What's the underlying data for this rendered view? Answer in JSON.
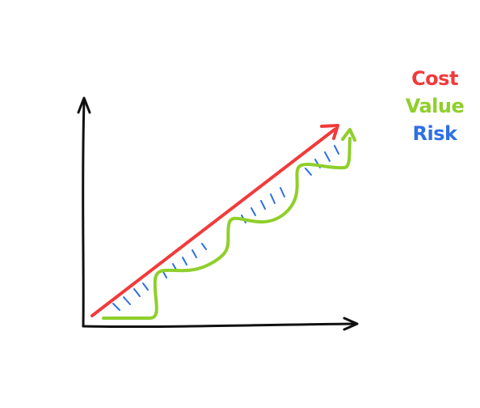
{
  "legend": {
    "items": [
      {
        "label": "Cost",
        "color": "#f23a3a"
      },
      {
        "label": "Value",
        "color": "#8fcf2a"
      },
      {
        "label": "Risk",
        "color": "#2f6fe6"
      }
    ]
  },
  "colors": {
    "axis": "#111111",
    "cost": "#f23a3a",
    "value": "#8fcf2a",
    "risk": "#2f6fe6"
  },
  "icons": {
    "y_axis": "arrow-up-icon",
    "x_axis": "arrow-right-icon",
    "cost": "arrow-up-right-icon",
    "value": "stepped-arrow-icon"
  }
}
